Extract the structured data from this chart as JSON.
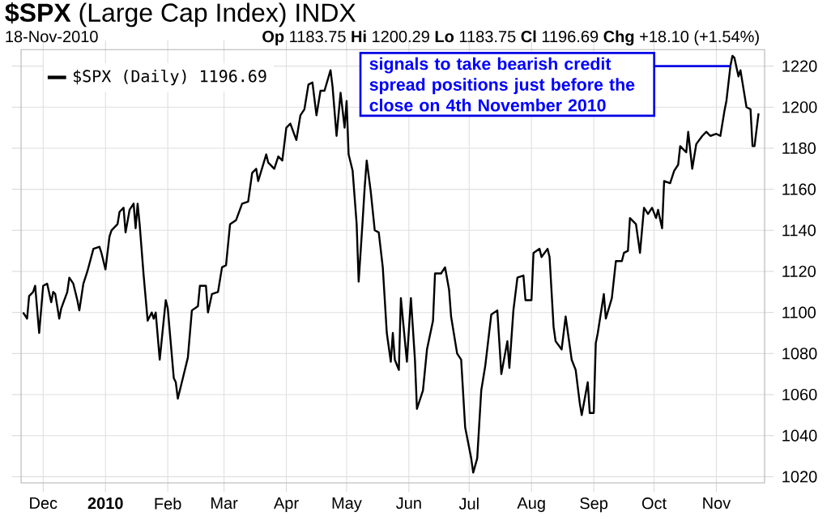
{
  "chart_data": {
    "type": "line",
    "title": "**$SPX** (Large Cap Index) INDX",
    "subtitle": "18-Nov-2010",
    "annotations": [
      "**Op** 1183.75 **Hi** 1200.29 **Lo** 1183.75 **Cl** 1196.69 **Chg** +18.10 (+1.54%)",
      {
        "text": "signals to take bearish credit spread positions just before the close on 4th November 2010",
        "x": "2010-11-08",
        "y": 1220
      }
    ],
    "x": [
      "2009-11-21",
      "2009-11-23",
      "2009-11-24",
      "2009-11-26",
      "2009-11-27",
      "2009-11-29",
      "2009-12-01",
      "2009-12-03",
      "2009-12-05",
      "2009-12-06",
      "2009-12-07",
      "2009-12-09",
      "2009-12-10",
      "2009-12-13",
      "2009-12-14",
      "2009-12-16",
      "2009-12-18",
      "2009-12-19",
      "2009-12-21",
      "2009-12-23",
      "2009-12-26",
      "2009-12-29",
      "2009-12-30",
      "2010-01-01",
      "2010-01-03",
      "2010-01-04",
      "2010-01-07",
      "2010-01-08",
      "2010-01-10",
      "2010-01-11",
      "2010-01-13",
      "2010-01-15",
      "2010-01-16",
      "2010-01-17",
      "2010-01-18",
      "2010-01-20",
      "2010-01-22",
      "2010-01-24",
      "2010-01-25",
      "2010-01-26",
      "2010-01-28",
      "2010-01-31",
      "2010-02-01",
      "2010-02-04",
      "2010-02-05",
      "2010-02-06",
      "2010-02-09",
      "2010-02-11",
      "2010-02-13",
      "2010-02-16",
      "2010-02-17",
      "2010-02-20",
      "2010-02-21",
      "2010-02-23",
      "2010-02-26",
      "2010-02-28",
      "2010-03-02",
      "2010-03-04",
      "2010-03-07",
      "2010-03-10",
      "2010-03-13",
      "2010-03-15",
      "2010-03-17",
      "2010-03-18",
      "2010-03-22",
      "2010-03-23",
      "2010-03-26",
      "2010-03-28",
      "2010-03-30",
      "2010-04-01",
      "2010-04-03",
      "2010-04-06",
      "2010-04-08",
      "2010-04-10",
      "2010-04-12",
      "2010-04-14",
      "2010-04-16",
      "2010-04-18",
      "2010-04-20",
      "2010-04-23",
      "2010-04-24",
      "2010-04-26",
      "2010-04-28",
      "2010-04-30",
      "2010-05-01",
      "2010-05-02",
      "2010-05-04",
      "2010-05-06",
      "2010-05-07",
      "2010-05-09",
      "2010-05-10",
      "2010-05-11",
      "2010-05-13",
      "2010-05-15",
      "2010-05-17",
      "2010-05-19",
      "2010-05-21",
      "2010-05-23",
      "2010-05-24",
      "2010-05-25",
      "2010-05-27",
      "2010-05-28",
      "2010-05-31",
      "2010-06-02",
      "2010-06-04",
      "2010-06-05",
      "2010-06-08",
      "2010-06-10",
      "2010-06-13",
      "2010-06-14",
      "2010-06-17",
      "2010-06-19",
      "2010-06-21",
      "2010-06-22",
      "2010-06-25",
      "2010-06-27",
      "2010-06-29",
      "2010-07-02",
      "2010-07-03",
      "2010-07-05",
      "2010-07-07",
      "2010-07-09",
      "2010-07-12",
      "2010-07-15",
      "2010-07-17",
      "2010-07-20",
      "2010-07-21",
      "2010-07-23",
      "2010-07-25",
      "2010-07-28",
      "2010-07-29",
      "2010-08-01",
      "2010-08-02",
      "2010-08-05",
      "2010-08-06",
      "2010-08-09",
      "2010-08-10",
      "2010-08-12",
      "2010-08-13",
      "2010-08-16",
      "2010-08-18",
      "2010-08-21",
      "2010-08-23",
      "2010-08-25",
      "2010-08-26",
      "2010-08-29",
      "2010-08-30",
      "2010-09-01",
      "2010-09-02",
      "2010-09-03",
      "2010-09-06",
      "2010-09-07",
      "2010-09-10",
      "2010-09-12",
      "2010-09-15",
      "2010-09-16",
      "2010-09-18",
      "2010-09-19",
      "2010-09-22",
      "2010-09-24",
      "2010-09-26",
      "2010-09-28",
      "2010-09-30",
      "2010-10-02",
      "2010-10-03",
      "2010-10-05",
      "2010-10-06",
      "2010-10-09",
      "2010-10-11",
      "2010-10-13",
      "2010-10-14",
      "2010-10-17",
      "2010-10-18",
      "2010-10-20",
      "2010-10-22",
      "2010-10-25",
      "2010-10-27",
      "2010-10-29",
      "2010-11-01",
      "2010-11-03",
      "2010-11-05",
      "2010-11-06",
      "2010-11-08",
      "2010-11-09",
      "2010-11-10",
      "2010-11-12",
      "2010-11-13",
      "2010-11-14",
      "2010-11-16",
      "2010-11-18",
      "2010-11-19",
      "2010-11-20",
      "2010-11-22"
    ],
    "series": [
      {
        "name": "$SPX (Daily) 1196.69",
        "color": "#000000",
        "values": [
          1100,
          1097,
          1108,
          1110,
          1113,
          1090,
          1113,
          1114,
          1105,
          1110,
          1109,
          1097,
          1102,
          1110,
          1117,
          1114,
          1106,
          1101,
          1114,
          1120,
          1131,
          1132,
          1129,
          1121,
          1137,
          1140,
          1143,
          1149,
          1151,
          1139,
          1150,
          1153,
          1141,
          1153,
          1143,
          1118,
          1096,
          1100,
          1097,
          1100,
          1077,
          1106,
          1102,
          1068,
          1066,
          1058,
          1070,
          1078,
          1101,
          1103,
          1113,
          1113,
          1100,
          1109,
          1110,
          1122,
          1123,
          1143,
          1145,
          1153,
          1154,
          1168,
          1170,
          1164,
          1177,
          1173,
          1170,
          1176,
          1174,
          1190,
          1192,
          1184,
          1196,
          1199,
          1211,
          1212,
          1196,
          1208,
          1208,
          1218,
          1210,
          1186,
          1207,
          1190,
          1203,
          1177,
          1169,
          1143,
          1115,
          1145,
          1161,
          1174,
          1159,
          1140,
          1139,
          1122,
          1090,
          1076,
          1090,
          1077,
          1072,
          1107,
          1076,
          1107,
          1077,
          1053,
          1062,
          1082,
          1096,
          1119,
          1119,
          1122,
          1111,
          1098,
          1080,
          1077,
          1044,
          1029,
          1022,
          1029,
          1062,
          1074,
          1099,
          1101,
          1070,
          1086,
          1073,
          1101,
          1117,
          1118,
          1106,
          1106,
          1129,
          1131,
          1127,
          1131,
          1127,
          1093,
          1086,
          1082,
          1098,
          1077,
          1072,
          1056,
          1050,
          1066,
          1051,
          1051,
          1085,
          1090,
          1109,
          1097,
          1107,
          1125,
          1125,
          1129,
          1130,
          1146,
          1143,
          1129,
          1151,
          1148,
          1151,
          1146,
          1150,
          1141,
          1164,
          1163,
          1169,
          1172,
          1181,
          1178,
          1188,
          1170,
          1182,
          1186,
          1188,
          1186,
          1187,
          1186,
          1198,
          1203,
          1220,
          1225,
          1224,
          1215,
          1218,
          1212,
          1200,
          1199,
          1181,
          1181,
          1197
        ]
      }
    ],
    "xlim": [
      "2009-11-20",
      "2010-11-25"
    ],
    "xticks": [
      {
        "value": "2009-12-01",
        "label": "Dec"
      },
      {
        "value": "2010-01-01",
        "label": "**2010**"
      },
      {
        "value": "2010-02-01",
        "label": "Feb"
      },
      {
        "value": "2010-03-01",
        "label": "Mar"
      },
      {
        "value": "2010-04-01",
        "label": "Apr"
      },
      {
        "value": "2010-05-01",
        "label": "May"
      },
      {
        "value": "2010-06-01",
        "label": "Jun"
      },
      {
        "value": "2010-07-01",
        "label": "Jul"
      },
      {
        "value": "2010-08-01",
        "label": "Aug"
      },
      {
        "value": "2010-09-01",
        "label": "Sep"
      },
      {
        "value": "2010-10-01",
        "label": "Oct"
      },
      {
        "value": "2010-11-01",
        "label": "Nov"
      }
    ],
    "ylim": [
      1017,
      1228
    ],
    "yticks": [
      1020,
      1040,
      1060,
      1080,
      1100,
      1120,
      1140,
      1160,
      1180,
      1200,
      1220
    ],
    "grid": true,
    "legend": "top left"
  }
}
